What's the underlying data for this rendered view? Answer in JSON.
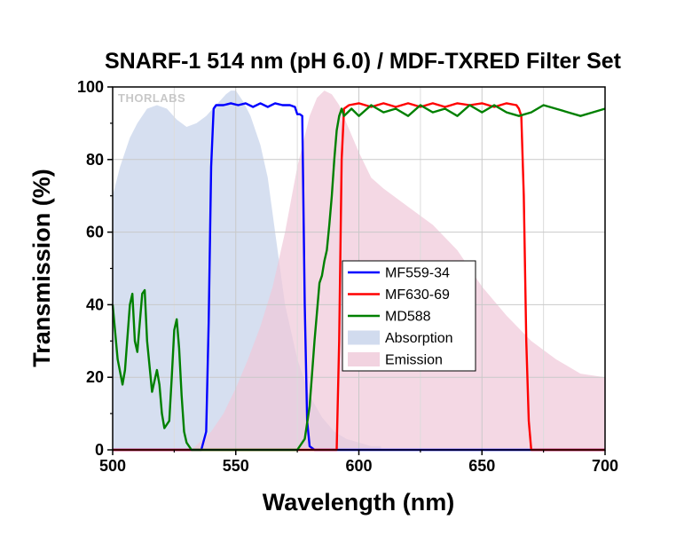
{
  "chart_data": {
    "type": "area",
    "title": "SNARF-1 514 nm (pH 6.0) / MDF-TXRED Filter Set",
    "xlabel": "Wavelength (nm)",
    "ylabel": "Transmission (%)",
    "xlim": [
      500,
      700
    ],
    "ylim": [
      0,
      100
    ],
    "xticks": [
      500,
      550,
      600,
      650,
      700
    ],
    "yticks": [
      0,
      20,
      40,
      60,
      80,
      100
    ],
    "grid": true,
    "legend_position": "center",
    "watermark": "THORLABS",
    "series": [
      {
        "name": "MF559-34",
        "kind": "line",
        "color": "#0000ff",
        "x": [
          500,
          530,
          536,
          538,
          539,
          540,
          541,
          542,
          545,
          548,
          551,
          554,
          557,
          560,
          563,
          566,
          569,
          572,
          574,
          575,
          576,
          577,
          578,
          579,
          580,
          582,
          700
        ],
        "y": [
          0,
          0,
          0,
          5,
          35,
          78,
          94,
          95,
          95,
          95.5,
          95,
          95.5,
          94.5,
          95.5,
          94.5,
          95.5,
          95,
          95,
          94.5,
          92.5,
          92.5,
          92,
          40,
          8,
          1,
          0,
          0
        ]
      },
      {
        "name": "MF630-69",
        "kind": "line",
        "color": "#ff0000",
        "x": [
          500,
          591,
          592,
          593,
          594,
          596,
          600,
          605,
          610,
          615,
          620,
          625,
          630,
          635,
          640,
          645,
          650,
          655,
          660,
          664,
          665,
          666,
          667,
          668,
          669,
          670,
          700
        ],
        "y": [
          0,
          0,
          30,
          80,
          94,
          95,
          95.5,
          94.5,
          95.5,
          94.5,
          95.5,
          94.5,
          95.5,
          94.5,
          95.5,
          95,
          95.5,
          94.5,
          95.5,
          95,
          94,
          92,
          70,
          30,
          8,
          0,
          0
        ]
      },
      {
        "name": "MD588",
        "kind": "line",
        "color": "#008000",
        "x": [
          500,
          502,
          504,
          505,
          507,
          508,
          509,
          510,
          512,
          513,
          514,
          516,
          518,
          519,
          520,
          521,
          523,
          524,
          525,
          526,
          527,
          528,
          529,
          530,
          532,
          535,
          540,
          575,
          578,
          580,
          582,
          584,
          585,
          586,
          587,
          588,
          589,
          590,
          591,
          592,
          593,
          594,
          597,
          600,
          605,
          610,
          615,
          620,
          625,
          630,
          635,
          640,
          645,
          650,
          655,
          660,
          665,
          670,
          675,
          680,
          685,
          690,
          695,
          700
        ],
        "y": [
          40,
          25,
          18,
          22,
          40,
          43,
          30,
          27,
          43,
          44,
          30,
          16,
          22,
          18,
          10,
          6,
          8,
          20,
          33,
          36,
          28,
          15,
          5,
          2,
          0,
          0,
          0,
          0,
          3,
          12,
          30,
          46,
          48,
          52,
          55,
          62,
          70,
          80,
          88,
          92,
          94,
          92,
          94,
          92,
          95,
          93,
          94,
          92,
          95,
          93,
          94,
          92,
          95,
          93,
          95,
          93,
          92,
          93,
          95,
          94,
          93,
          92,
          93,
          94
        ]
      },
      {
        "name": "Absorption",
        "kind": "area",
        "color": "#c5d2ea",
        "x": [
          500,
          503,
          507,
          510,
          514,
          518,
          522,
          526,
          530,
          534,
          538,
          542,
          546,
          548,
          550,
          553,
          556,
          560,
          563,
          566,
          570,
          575,
          580,
          585,
          590,
          595,
          600,
          605,
          609
        ],
        "y": [
          70,
          78,
          86,
          90,
          94,
          95,
          94,
          91,
          89,
          90,
          92,
          95,
          98,
          99,
          99,
          96,
          92,
          84,
          75,
          60,
          40,
          25,
          15,
          9,
          5,
          3,
          2,
          1,
          1
        ]
      },
      {
        "name": "Emission",
        "kind": "area",
        "color": "#efc8d8",
        "x": [
          532,
          540,
          545,
          550,
          555,
          560,
          565,
          570,
          575,
          580,
          583,
          586,
          589,
          592,
          595,
          600,
          605,
          610,
          620,
          630,
          640,
          650,
          660,
          670,
          680,
          690,
          700
        ],
        "y": [
          0,
          5,
          10,
          17,
          25,
          34,
          45,
          60,
          78,
          92,
          97,
          99,
          98,
          95,
          90,
          82,
          75,
          72,
          67,
          62,
          55,
          45,
          37,
          30,
          25,
          21,
          20
        ]
      }
    ]
  }
}
